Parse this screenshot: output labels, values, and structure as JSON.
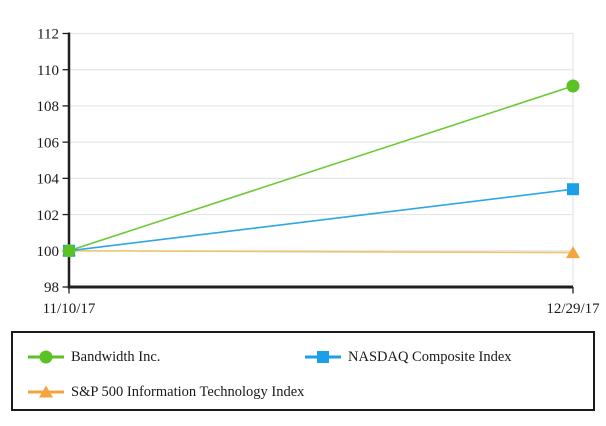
{
  "page": {
    "background": "#ffffff"
  },
  "chart_data": {
    "type": "line",
    "title": "",
    "xlabel": "",
    "ylabel": "",
    "x_categories": [
      "11/10/17",
      "12/29/17"
    ],
    "y_ticks": [
      98,
      100,
      102,
      104,
      106,
      108,
      110,
      112
    ],
    "ylim": [
      98,
      112
    ],
    "grid": true,
    "legend_position": "bottom-box",
    "grid_color": "#E5E5E5",
    "axis_color": "#1F1F1F",
    "text_color": "#1a1a1a",
    "series": [
      {
        "name": "Bandwidth Inc.",
        "slug": "bandwidth",
        "marker": "circle",
        "color": "#5BC226",
        "line_color": "#6CC937",
        "values": [
          100,
          109.1
        ]
      },
      {
        "name": "NASDAQ Composite Index",
        "slug": "nasdaq-composite",
        "marker": "square",
        "color": "#1B9FE8",
        "line_color": "#2FA6E5",
        "values": [
          100,
          103.4
        ]
      },
      {
        "name": "S&P 500 Information Technology Index",
        "slug": "sp500-information-technology",
        "marker": "triangle",
        "color": "#F5A53F",
        "line_color": "#EFC468",
        "values": [
          100,
          99.9
        ]
      }
    ]
  }
}
